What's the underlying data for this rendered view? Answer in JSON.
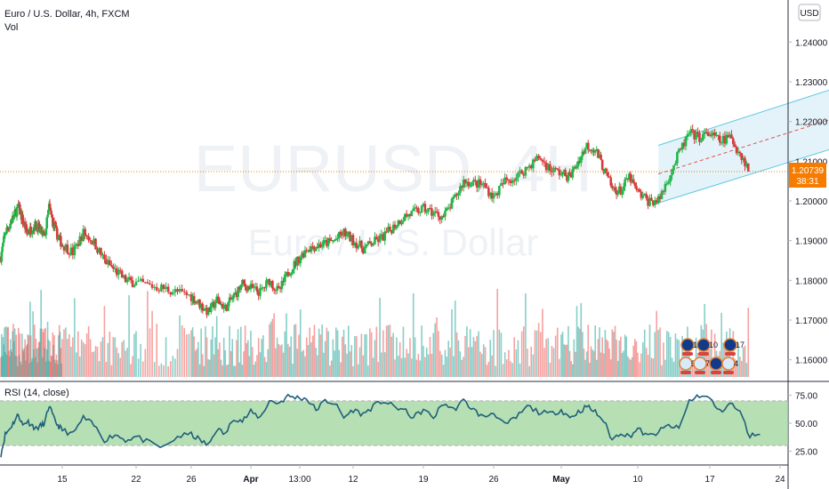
{
  "header": {
    "symbol_title": "Euro / U.S. Dollar, 4h, FXCM",
    "indicator_vol": "Vol",
    "currency_button": "USD"
  },
  "watermark": {
    "symbol": "EURUSD, 4H",
    "name": "Euro / U.S. Dollar"
  },
  "price_label": {
    "value": "1.20739",
    "countdown": "38:31"
  },
  "rsi_label": "RSI (14, close)",
  "event_badges": [
    "10",
    "10",
    "17",
    "5",
    "7",
    "11",
    "4"
  ],
  "colors": {
    "up": "#26a69a",
    "up_candle": "#21b64a",
    "down": "#ef5350",
    "down_candle": "#d83a3a",
    "price_line": "#f57c00",
    "channel": "#5dc9de",
    "rsi_line": "#1f5f7a",
    "rsi_band": "#9dd49a"
  },
  "chart_data": [
    {
      "type": "candlestick",
      "title": "Euro / U.S. Dollar, 4h, FXCM",
      "ylim": [
        1.155,
        1.245
      ],
      "y_ticks": [
        "1.16000",
        "1.17000",
        "1.18000",
        "1.19000",
        "1.20000",
        "1.21000",
        "1.22000",
        "1.23000",
        "1.24000"
      ],
      "x_ticks": [
        "15",
        "22",
        "26",
        "Apr",
        "13:00",
        "12",
        "19",
        "26",
        "May",
        "10",
        "17",
        "24"
      ],
      "last_price": 1.20739,
      "close_path": [
        {
          "d": 0,
          "p": 1.186
        },
        {
          "d": 1,
          "p": 1.192
        },
        {
          "d": 2,
          "p": 1.194
        },
        {
          "d": 4,
          "p": 1.1985
        },
        {
          "d": 5,
          "p": 1.195
        },
        {
          "d": 6,
          "p": 1.192
        },
        {
          "d": 8,
          "p": 1.194
        },
        {
          "d": 10,
          "p": 1.191
        },
        {
          "d": 11,
          "p": 1.1985
        },
        {
          "d": 12,
          "p": 1.194
        },
        {
          "d": 13,
          "p": 1.191
        },
        {
          "d": 15,
          "p": 1.187
        },
        {
          "d": 16,
          "p": 1.192
        },
        {
          "d": 17,
          "p": 1.1895
        },
        {
          "d": 18,
          "p": 1.185
        },
        {
          "d": 20,
          "p": 1.18
        },
        {
          "d": 23,
          "p": 1.178
        },
        {
          "d": 25,
          "p": 1.176
        },
        {
          "d": 27,
          "p": 1.172
        },
        {
          "d": 28,
          "p": 1.175
        },
        {
          "d": 29,
          "p": 1.173
        },
        {
          "d": 31,
          "p": 1.179
        },
        {
          "d": 33,
          "p": 1.177
        },
        {
          "d": 34,
          "p": 1.18
        },
        {
          "d": 35,
          "p": 1.177
        },
        {
          "d": 36,
          "p": 1.182
        },
        {
          "d": 38,
          "p": 1.188
        },
        {
          "d": 41,
          "p": 1.19
        },
        {
          "d": 42,
          "p": 1.192
        },
        {
          "d": 44,
          "p": 1.188
        },
        {
          "d": 46,
          "p": 1.191
        },
        {
          "d": 48,
          "p": 1.196
        },
        {
          "d": 50,
          "p": 1.198
        },
        {
          "d": 52,
          "p": 1.196
        },
        {
          "d": 53,
          "p": 1.2
        },
        {
          "d": 54,
          "p": 1.205
        },
        {
          "d": 56,
          "p": 1.204
        },
        {
          "d": 57,
          "p": 1.201
        },
        {
          "d": 58,
          "p": 1.205
        },
        {
          "d": 59,
          "p": 1.206
        },
        {
          "d": 61,
          "p": 1.211
        },
        {
          "d": 62,
          "p": 1.208
        },
        {
          "d": 64,
          "p": 1.206
        },
        {
          "d": 65,
          "p": 1.21
        },
        {
          "d": 66,
          "p": 1.214
        },
        {
          "d": 67,
          "p": 1.213
        },
        {
          "d": 68,
          "p": 1.208
        },
        {
          "d": 69,
          "p": 1.203
        },
        {
          "d": 70,
          "p": 1.2025
        },
        {
          "d": 71,
          "p": 1.206
        },
        {
          "d": 72,
          "p": 1.202
        },
        {
          "d": 73,
          "p": 1.2
        },
        {
          "d": 74,
          "p": 1.2
        },
        {
          "d": 75,
          "p": 1.206
        },
        {
          "d": 76,
          "p": 1.212
        },
        {
          "d": 77,
          "p": 1.217
        },
        {
          "d": 78,
          "p": 1.216
        },
        {
          "d": 79,
          "p": 1.217
        },
        {
          "d": 80,
          "p": 1.215
        },
        {
          "d": 81,
          "p": 1.216
        },
        {
          "d": 82,
          "p": 1.212
        },
        {
          "d": 83,
          "p": 1.2075
        }
      ],
      "channel": {
        "lower": [
          {
            "d": 74,
            "p": 1.1995
          },
          {
            "d": 91,
            "p": 1.213
          }
        ],
        "upper": [
          {
            "d": 74,
            "p": 1.214
          },
          {
            "d": 91,
            "p": 1.228
          }
        ],
        "mid": [
          {
            "d": 74,
            "p": 1.2068
          },
          {
            "d": 91,
            "p": 1.2205
          }
        ]
      }
    },
    {
      "type": "line",
      "title": "RSI (14, close)",
      "ylim": [
        15,
        85
      ],
      "y_ticks": [
        "25.00",
        "50.00",
        "75.00"
      ],
      "bands": [
        30,
        70
      ],
      "series": [
        {
          "values": [
            {
              "d": 0,
              "v": 22
            },
            {
              "d": 1,
              "v": 40
            },
            {
              "d": 2,
              "v": 45
            },
            {
              "d": 4,
              "v": 58
            },
            {
              "d": 5,
              "v": 48
            },
            {
              "d": 6,
              "v": 52
            },
            {
              "d": 8,
              "v": 45
            },
            {
              "d": 10,
              "v": 50
            },
            {
              "d": 11,
              "v": 66
            },
            {
              "d": 12,
              "v": 55
            },
            {
              "d": 13,
              "v": 48
            },
            {
              "d": 15,
              "v": 40
            },
            {
              "d": 16,
              "v": 55
            },
            {
              "d": 17,
              "v": 48
            },
            {
              "d": 18,
              "v": 35
            },
            {
              "d": 19,
              "v": 40
            },
            {
              "d": 20,
              "v": 35
            },
            {
              "d": 21,
              "v": 38
            },
            {
              "d": 22,
              "v": 32
            },
            {
              "d": 23,
              "v": 28
            },
            {
              "d": 24,
              "v": 38
            },
            {
              "d": 25,
              "v": 40
            },
            {
              "d": 26,
              "v": 35
            },
            {
              "d": 27,
              "v": 30
            },
            {
              "d": 28,
              "v": 45
            },
            {
              "d": 29,
              "v": 40
            },
            {
              "d": 30,
              "v": 55
            },
            {
              "d": 31,
              "v": 52
            },
            {
              "d": 32,
              "v": 60
            },
            {
              "d": 33,
              "v": 55
            },
            {
              "d": 34,
              "v": 70
            },
            {
              "d": 35,
              "v": 68
            },
            {
              "d": 36,
              "v": 74
            },
            {
              "d": 37,
              "v": 73
            },
            {
              "d": 38,
              "v": 72
            },
            {
              "d": 39,
              "v": 62
            },
            {
              "d": 40,
              "v": 70
            },
            {
              "d": 41,
              "v": 68
            },
            {
              "d": 42,
              "v": 55
            },
            {
              "d": 43,
              "v": 62
            },
            {
              "d": 44,
              "v": 58
            },
            {
              "d": 45,
              "v": 65
            },
            {
              "d": 46,
              "v": 70
            },
            {
              "d": 47,
              "v": 65
            },
            {
              "d": 48,
              "v": 62
            },
            {
              "d": 49,
              "v": 55
            },
            {
              "d": 50,
              "v": 62
            },
            {
              "d": 51,
              "v": 55
            },
            {
              "d": 52,
              "v": 68
            },
            {
              "d": 53,
              "v": 62
            },
            {
              "d": 54,
              "v": 70
            },
            {
              "d": 55,
              "v": 62
            },
            {
              "d": 56,
              "v": 55
            },
            {
              "d": 57,
              "v": 60
            },
            {
              "d": 58,
              "v": 48
            },
            {
              "d": 59,
              "v": 55
            },
            {
              "d": 60,
              "v": 65
            },
            {
              "d": 61,
              "v": 60
            },
            {
              "d": 62,
              "v": 58
            },
            {
              "d": 63,
              "v": 62
            },
            {
              "d": 64,
              "v": 55
            },
            {
              "d": 65,
              "v": 60
            },
            {
              "d": 66,
              "v": 65
            },
            {
              "d": 67,
              "v": 60
            },
            {
              "d": 68,
              "v": 52
            },
            {
              "d": 69,
              "v": 35
            },
            {
              "d": 70,
              "v": 42
            },
            {
              "d": 71,
              "v": 38
            },
            {
              "d": 72,
              "v": 45
            },
            {
              "d": 73,
              "v": 38
            },
            {
              "d": 74,
              "v": 42
            },
            {
              "d": 75,
              "v": 48
            },
            {
              "d": 76,
              "v": 45
            },
            {
              "d": 77,
              "v": 70
            },
            {
              "d": 78,
              "v": 75
            },
            {
              "d": 79,
              "v": 72
            },
            {
              "d": 80,
              "v": 60
            },
            {
              "d": 81,
              "v": 68
            },
            {
              "d": 82,
              "v": 60
            },
            {
              "d": 83,
              "v": 38
            },
            {
              "d": 84,
              "v": 42
            }
          ]
        }
      ]
    }
  ]
}
